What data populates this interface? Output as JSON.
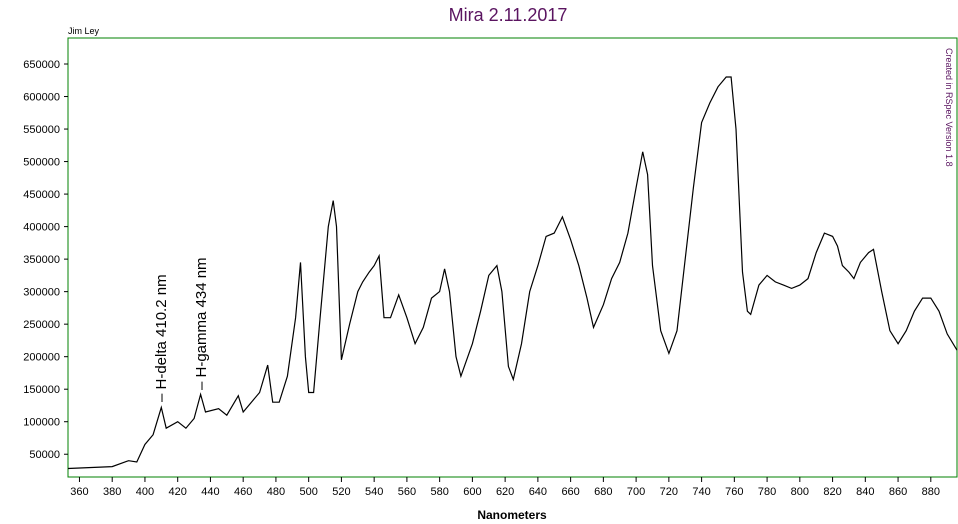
{
  "chart_data": {
    "type": "line",
    "title": "Mira 2.11.2017",
    "xlabel": "Nanometers",
    "credit": "Jim Ley",
    "software_note": "Created in RSpec Version 1.8",
    "annotations": [
      "– H-delta 410.2 nm",
      "– H-gamma 434 nm"
    ],
    "color": "#000000",
    "frame_color": "#008000",
    "title_color": "#5a1460",
    "x": [
      353,
      380,
      390,
      395,
      400,
      405,
      410,
      413,
      420,
      425,
      430,
      434,
      437,
      445,
      450,
      457,
      460,
      465,
      470,
      475,
      478,
      482,
      487,
      492,
      495,
      498,
      500,
      503,
      507,
      512,
      515,
      517,
      520,
      525,
      530,
      533,
      537,
      540,
      543,
      546,
      550,
      555,
      560,
      565,
      570,
      575,
      580,
      583,
      586,
      590,
      593,
      600,
      605,
      610,
      615,
      618,
      622,
      625,
      630,
      635,
      640,
      645,
      650,
      655,
      660,
      665,
      670,
      674,
      680,
      685,
      690,
      695,
      700,
      704,
      707,
      710,
      715,
      720,
      725,
      730,
      735,
      740,
      745,
      750,
      755,
      758,
      761,
      765,
      768,
      770,
      775,
      780,
      785,
      790,
      795,
      800,
      805,
      810,
      815,
      820,
      823,
      826,
      830,
      833,
      837,
      842,
      845,
      850,
      855,
      860,
      865,
      870,
      875,
      880,
      885,
      890,
      896
    ],
    "values": [
      28000,
      31000,
      40000,
      38000,
      65000,
      80000,
      122000,
      90000,
      100000,
      90000,
      105000,
      142000,
      115000,
      120000,
      110000,
      140000,
      115000,
      130000,
      145000,
      187000,
      130000,
      130000,
      170000,
      260000,
      345000,
      200000,
      145000,
      145000,
      260000,
      400000,
      440000,
      400000,
      195000,
      250000,
      300000,
      315000,
      330000,
      340000,
      355000,
      260000,
      260000,
      295000,
      260000,
      220000,
      245000,
      290000,
      300000,
      335000,
      300000,
      200000,
      170000,
      220000,
      270000,
      325000,
      340000,
      300000,
      185000,
      165000,
      220000,
      300000,
      340000,
      385000,
      390000,
      415000,
      380000,
      340000,
      290000,
      245000,
      280000,
      320000,
      345000,
      390000,
      460000,
      515000,
      480000,
      340000,
      240000,
      205000,
      240000,
      350000,
      460000,
      560000,
      590000,
      615000,
      630000,
      630000,
      550000,
      330000,
      270000,
      265000,
      310000,
      325000,
      315000,
      310000,
      305000,
      310000,
      320000,
      360000,
      390000,
      385000,
      370000,
      340000,
      330000,
      320000,
      345000,
      360000,
      365000,
      300000,
      240000,
      220000,
      240000,
      270000,
      290000,
      290000,
      270000,
      235000,
      210000
    ],
    "xlim": [
      353,
      896
    ],
    "ylim": [
      15000,
      690000
    ],
    "xticks": [
      360,
      380,
      400,
      420,
      440,
      460,
      480,
      500,
      520,
      540,
      560,
      580,
      600,
      620,
      640,
      660,
      680,
      700,
      720,
      740,
      760,
      780,
      800,
      820,
      840,
      860,
      880
    ],
    "yticks": [
      50000,
      100000,
      150000,
      200000,
      250000,
      300000,
      350000,
      400000,
      450000,
      500000,
      550000,
      600000,
      650000
    ]
  }
}
